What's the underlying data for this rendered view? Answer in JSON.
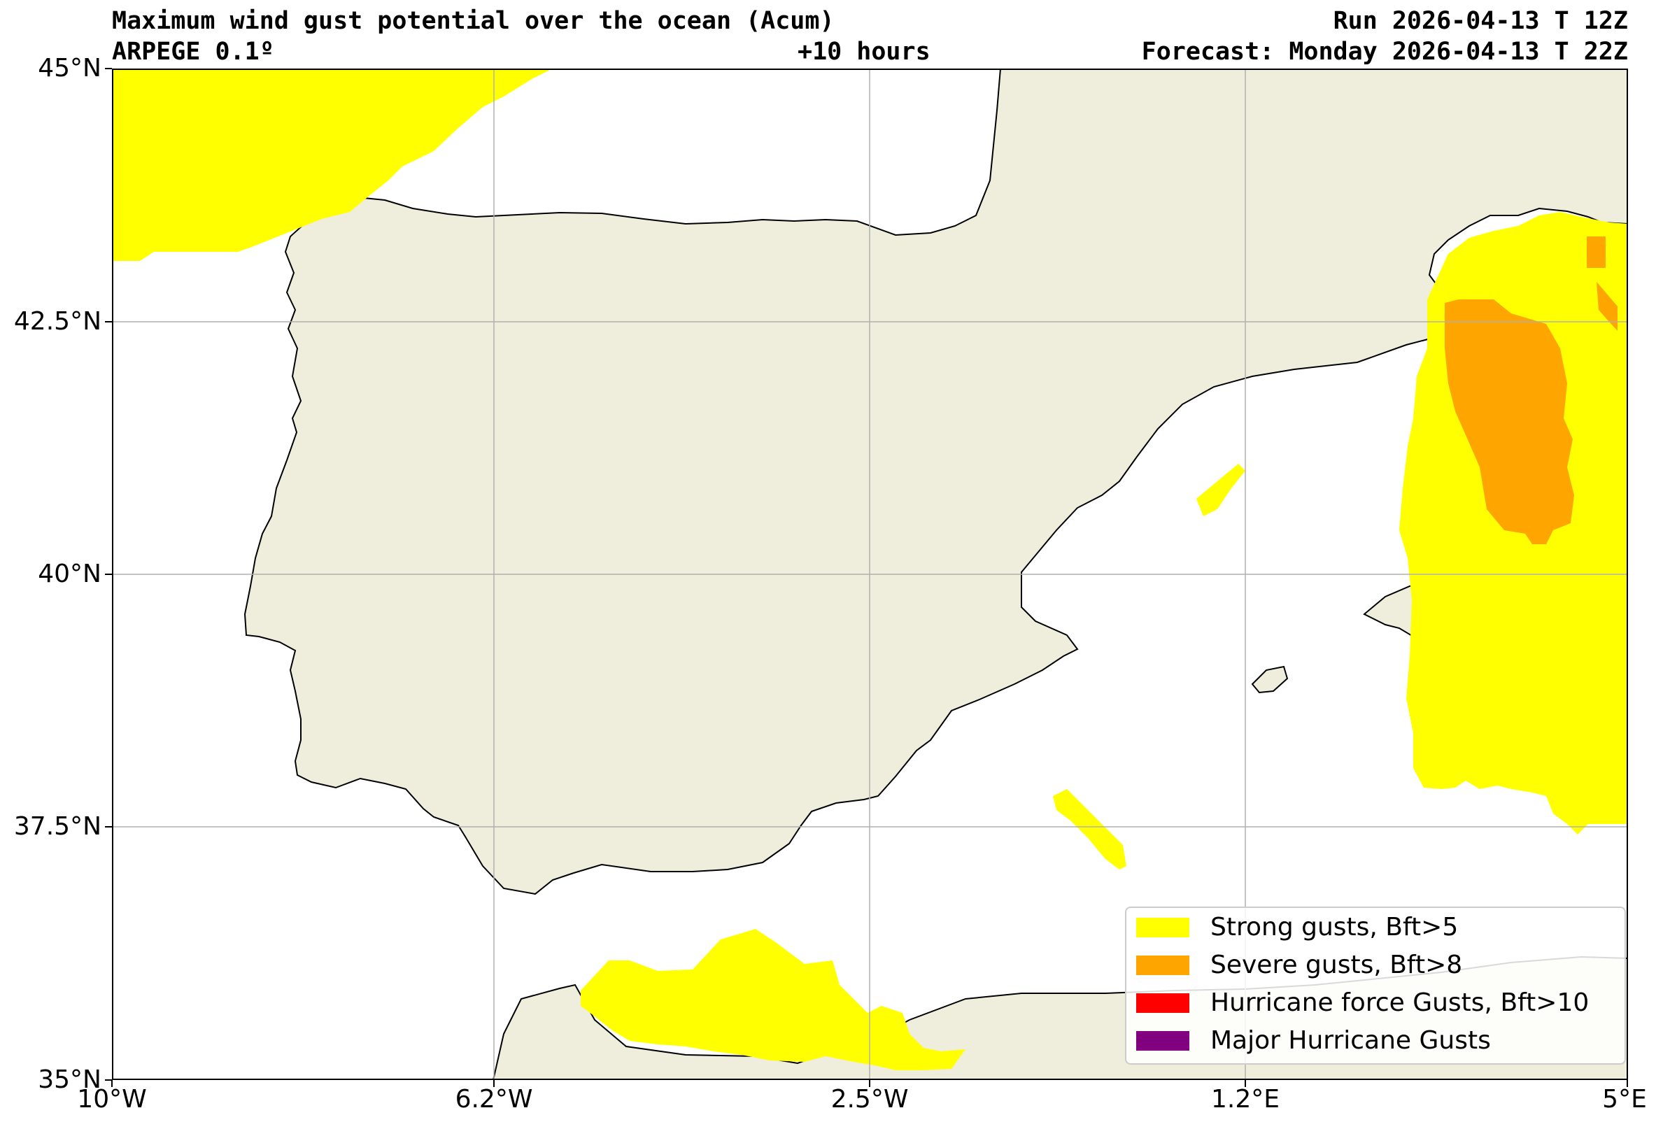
{
  "header": {
    "title": "Maximum wind gust potential over the ocean (Acum)",
    "model": "ARPEGE 0.1º",
    "lead_time": "+10 hours",
    "run": "Run 2026-04-13 T 12Z",
    "forecast": "Forecast: Monday 2026-04-13 T 22Z"
  },
  "axes": {
    "lat_labels": [
      "45°N",
      "42.5°N",
      "40°N",
      "37.5°N",
      "35°N"
    ],
    "lon_labels": [
      "10°W",
      "6.2°W",
      "2.5°W",
      "1.2°E",
      "5°E"
    ]
  },
  "legend": {
    "items": [
      {
        "label": "Strong gusts, Bft>5",
        "color": "#ffff00"
      },
      {
        "label": "Severe gusts, Bft>8",
        "color": "#ffa500"
      },
      {
        "label": "Hurricane force Gusts, Bft>10",
        "color": "#ff0000"
      },
      {
        "label": "Major Hurricane Gusts",
        "color": "#800080"
      }
    ]
  },
  "colors": {
    "land": "#efeedc",
    "ocean": "#ffffff",
    "grid": "#b0b0b0",
    "coastline": "#000000"
  }
}
